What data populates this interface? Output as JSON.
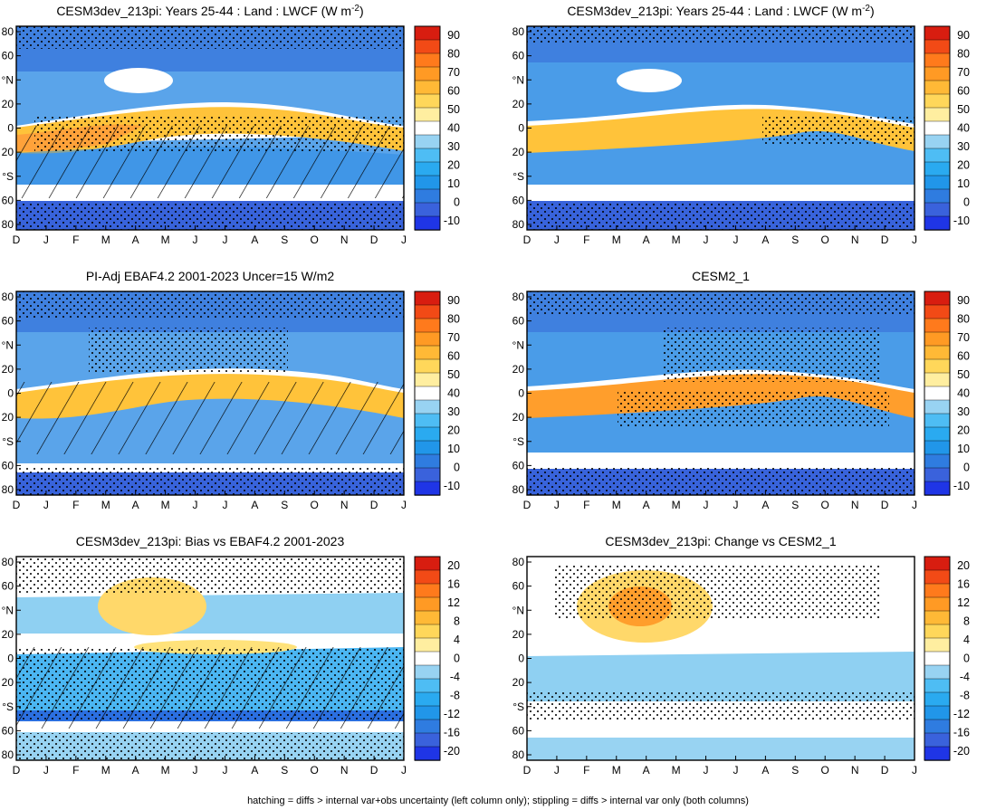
{
  "figure": {
    "footer": "hatching = diffs > internal var+obs uncertainty (left column only); stippling = diffs > internal var only (both columns)"
  },
  "colors": {
    "absolute": [
      "#1f35e6",
      "#3a62dc",
      "#2f7ce0",
      "#2196e9",
      "#2aaaf0",
      "#4ebdf4",
      "#98d3f2",
      "#ffffff",
      "#ffeea0",
      "#ffd75a",
      "#ffb936",
      "#ff9a24",
      "#ff7a1c",
      "#f24a16",
      "#d81d10"
    ],
    "difference": [
      "#1f35e6",
      "#3a62dc",
      "#2f7ce0",
      "#2196e9",
      "#2aaaf0",
      "#4ebdf4",
      "#98d3f2",
      "#ffffff",
      "#ffeea0",
      "#ffd75a",
      "#ffb936",
      "#ff9a24",
      "#ff7a1c",
      "#f24a16",
      "#d81d10"
    ]
  },
  "chart_data": [
    {
      "type": "heatmap",
      "title": "CESM3dev_213pi: Years 25-44 : Land : LWCF (W m",
      "title_sup": "-2",
      "title_end": ")",
      "x_tick_labels": [
        "D",
        "J",
        "F",
        "M",
        "A",
        "M",
        "J",
        "J",
        "A",
        "S",
        "O",
        "N",
        "D",
        "J"
      ],
      "y_tick_labels": [
        "80",
        "60",
        "°N",
        "20",
        "0",
        "20",
        "°S",
        "60",
        "80"
      ],
      "y_range": [
        -90,
        90
      ],
      "colorbar_labels": [
        "90",
        "80",
        "70",
        "60",
        "50",
        "40",
        "30",
        "20",
        "10",
        "0",
        "-10"
      ],
      "colorbar_range": [
        -15,
        95
      ],
      "hatching": true,
      "stippling": true
    },
    {
      "type": "heatmap",
      "title": "CESM3dev_213pi: Years 25-44 : Land : LWCF (W m",
      "title_sup": "-2",
      "title_end": ")",
      "x_tick_labels": [
        "D",
        "J",
        "F",
        "M",
        "A",
        "M",
        "J",
        "J",
        "A",
        "S",
        "O",
        "N",
        "D",
        "J"
      ],
      "y_tick_labels": [
        "80",
        "60",
        "°N",
        "20",
        "0",
        "20",
        "°S",
        "60",
        "80"
      ],
      "y_range": [
        -90,
        90
      ],
      "colorbar_labels": [
        "90",
        "80",
        "70",
        "60",
        "50",
        "40",
        "30",
        "20",
        "10",
        "0",
        "-10"
      ],
      "colorbar_range": [
        -15,
        95
      ],
      "hatching": false,
      "stippling": true
    },
    {
      "type": "heatmap",
      "title": "PI-Adj EBAF4.2 2001-2023 Uncer=15 W/m2",
      "x_tick_labels": [
        "D",
        "J",
        "F",
        "M",
        "A",
        "M",
        "J",
        "J",
        "A",
        "S",
        "O",
        "N",
        "D",
        "J"
      ],
      "y_tick_labels": [
        "80",
        "60",
        "°N",
        "20",
        "0",
        "20",
        "°S",
        "60",
        "80"
      ],
      "y_range": [
        -90,
        90
      ],
      "colorbar_labels": [
        "90",
        "80",
        "70",
        "60",
        "50",
        "40",
        "30",
        "20",
        "10",
        "0",
        "-10"
      ],
      "colorbar_range": [
        -15,
        95
      ],
      "hatching": true,
      "stippling": true
    },
    {
      "type": "heatmap",
      "title": "CESM2_1",
      "x_tick_labels": [
        "D",
        "J",
        "F",
        "M",
        "A",
        "M",
        "J",
        "J",
        "A",
        "S",
        "O",
        "N",
        "D",
        "J"
      ],
      "y_tick_labels": [
        "80",
        "60",
        "°N",
        "20",
        "0",
        "20",
        "°S",
        "60",
        "80"
      ],
      "y_range": [
        -90,
        90
      ],
      "colorbar_labels": [
        "90",
        "80",
        "70",
        "60",
        "50",
        "40",
        "30",
        "20",
        "10",
        "0",
        "-10"
      ],
      "colorbar_range": [
        -15,
        95
      ],
      "hatching": false,
      "stippling": true
    },
    {
      "type": "heatmap",
      "title": "CESM3dev_213pi: Bias vs EBAF4.2 2001-2023",
      "x_tick_labels": [
        "D",
        "J",
        "F",
        "M",
        "A",
        "M",
        "J",
        "J",
        "A",
        "S",
        "O",
        "N",
        "D",
        "J"
      ],
      "y_tick_labels": [
        "80",
        "60",
        "°N",
        "20",
        "0",
        "20",
        "°S",
        "60",
        "80"
      ],
      "y_range": [
        -90,
        90
      ],
      "colorbar_labels": [
        "20",
        "16",
        "12",
        "8",
        "4",
        "0",
        "-4",
        "-8",
        "-12",
        "-16",
        "-20"
      ],
      "colorbar_range": [
        -22,
        22
      ],
      "hatching": true,
      "stippling": true
    },
    {
      "type": "heatmap",
      "title": "CESM3dev_213pi: Change vs CESM2_1",
      "x_tick_labels": [
        "D",
        "J",
        "F",
        "M",
        "A",
        "M",
        "J",
        "J",
        "A",
        "S",
        "O",
        "N",
        "D",
        "J"
      ],
      "y_tick_labels": [
        "80",
        "60",
        "°N",
        "20",
        "0",
        "20",
        "°S",
        "60",
        "80"
      ],
      "y_range": [
        -90,
        90
      ],
      "colorbar_labels": [
        "20",
        "16",
        "12",
        "8",
        "4",
        "0",
        "-4",
        "-8",
        "-12",
        "-16",
        "-20"
      ],
      "colorbar_range": [
        -22,
        22
      ],
      "hatching": false,
      "stippling": true
    }
  ]
}
